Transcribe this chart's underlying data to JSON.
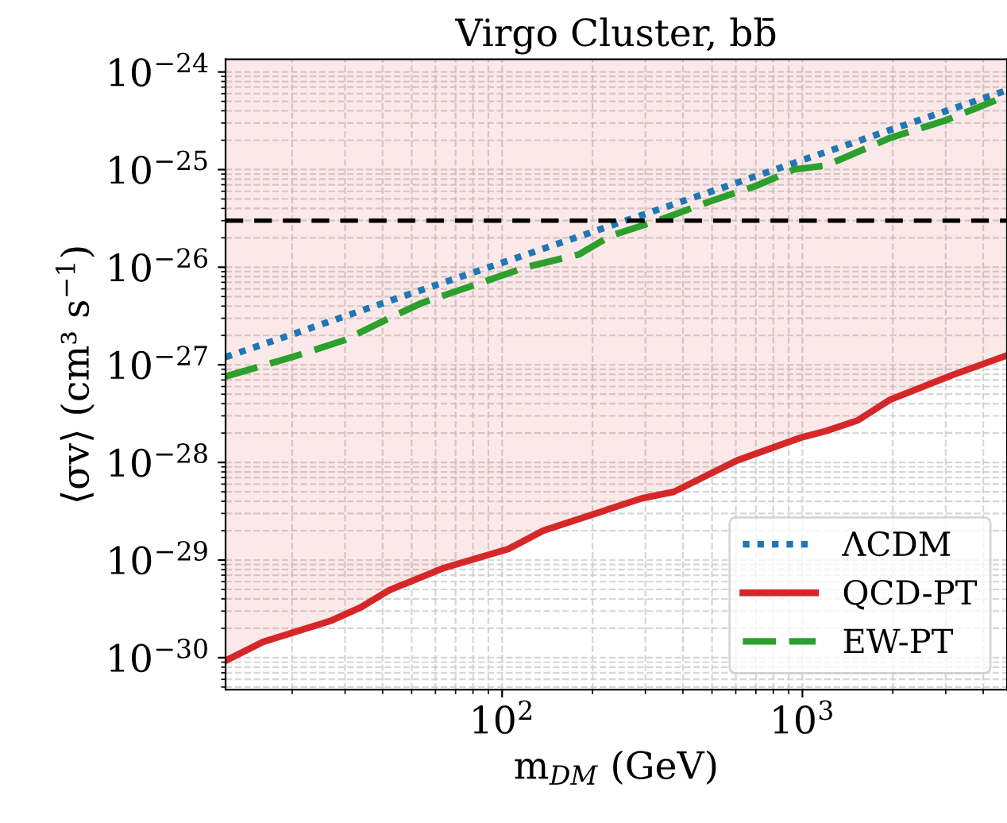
{
  "chart_data": {
    "type": "line",
    "title": "Virgo Cluster, bb̄",
    "xlabel": "m$_{DM}$ (GeV)",
    "ylabel": "⟨σv⟩ (cm³ s$^{−1}$)",
    "log": "xy",
    "grid": true,
    "legend": "bottom right",
    "xlim": [
      12,
      4800
    ],
    "ylim": [
      4.7e-31,
      1.35e-24
    ],
    "xticks": [
      {
        "value": 100,
        "label": "10$^{2}$"
      },
      {
        "value": 1000,
        "label": "10$^{3}$"
      }
    ],
    "yticks": [
      {
        "value": 1e-30,
        "label": "10$^{−30}$"
      },
      {
        "value": 1e-29,
        "label": "10$^{−29}$"
      },
      {
        "value": 1e-28,
        "label": "10$^{−28}$"
      },
      {
        "value": 1e-27,
        "label": "10$^{−27}$"
      },
      {
        "value": 1e-26,
        "label": "10$^{−26}$"
      },
      {
        "value": 1e-25,
        "label": "10$^{−25}$"
      },
      {
        "value": 1e-24,
        "label": "10$^{−24}$"
      }
    ],
    "ref_lines": [
      {
        "axis": "y",
        "value": 3e-26,
        "color": "#000000",
        "line_style": "dashed"
      }
    ],
    "series": [
      {
        "name": "ΛCDM",
        "color": "#1f77b4",
        "line_style": "dotted",
        "x": [
          12,
          20,
          50,
          100,
          200,
          500,
          1000,
          2000,
          4800
        ],
        "values": [
          1.2e-27,
          2.05e-27,
          5.4e-27,
          1.11e-26,
          2.3e-26,
          6e-26,
          1.25e-25,
          2.6e-25,
          6.5e-25
        ]
      },
      {
        "name": "QCD-PT",
        "color": "#d62728",
        "line_style": "solid",
        "x": [
          12,
          16,
          27,
          34,
          42,
          64,
          105,
          137,
          293,
          373,
          607,
          990,
          1200,
          1530,
          1960,
          3170,
          4800
        ],
        "values": [
          9.3e-31,
          1.45e-30,
          2.4e-30,
          3.3e-30,
          4.9e-30,
          8.3e-30,
          1.3e-29,
          2e-29,
          4.3e-29,
          5e-29,
          1.05e-28,
          1.8e-28,
          2.1e-28,
          2.7e-28,
          4.4e-28,
          7.9e-28,
          1.25e-27
        ],
        "lower": [
          9.3e-31,
          1.45e-30,
          2.4e-30,
          3.3e-30,
          4.9e-30,
          8.3e-30,
          1.3e-29,
          2e-29,
          4.3e-29,
          5e-29,
          1.05e-28,
          1.8e-28,
          2.1e-28,
          2.7e-28,
          4.4e-28,
          7.9e-28,
          1.25e-27
        ],
        "upper": [
          1.35e-24,
          1.35e-24,
          1.35e-24,
          1.35e-24,
          1.35e-24,
          1.35e-24,
          1.35e-24,
          1.35e-24,
          1.35e-24,
          1.35e-24,
          1.35e-24,
          1.35e-24,
          1.35e-24,
          1.35e-24,
          1.35e-24,
          1.35e-24,
          1.35e-24
        ]
      },
      {
        "name": "EW-PT",
        "color": "#2ca02c",
        "line_style": "dashed",
        "x": [
          12,
          20,
          30,
          42,
          54,
          80,
          120,
          180,
          230,
          340,
          500,
          700,
          935,
          1200,
          1950,
          3000,
          4800
        ],
        "values": [
          7.6e-28,
          1.2e-27,
          1.8e-27,
          3e-27,
          4.3e-27,
          6.5e-27,
          1e-26,
          1.35e-26,
          2.1e-26,
          3.1e-26,
          4.8e-26,
          6.8e-26,
          1e-25,
          1.1e-25,
          2.1e-25,
          3.2e-25,
          5.7e-25
        ]
      }
    ]
  }
}
